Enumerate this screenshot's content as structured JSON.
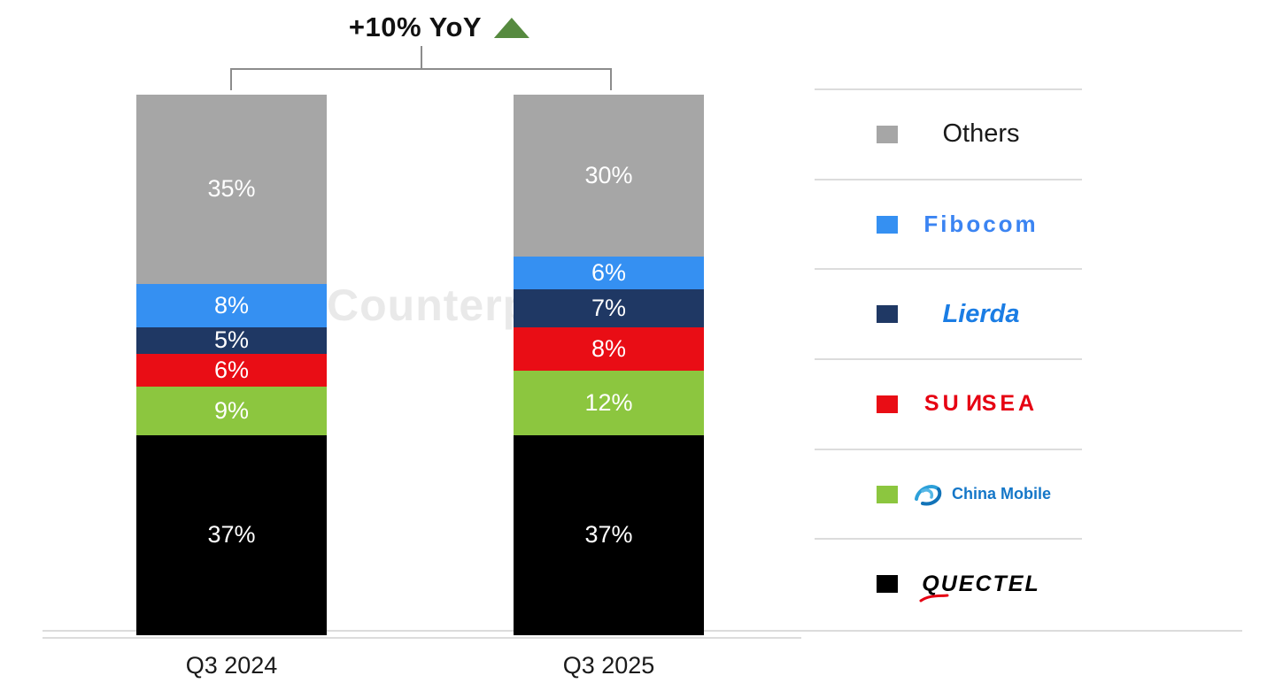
{
  "title": {
    "text": "+10% YoY",
    "arrow_icon": "up-triangle",
    "arrow_color": "#568a3f"
  },
  "watermark": {
    "text": "Counterp"
  },
  "chart_data": {
    "type": "bar",
    "subtype": "100%-stacked-column",
    "title": "+10% YoY",
    "categories": [
      "Q3 2024",
      "Q3 2025"
    ],
    "unit": "%",
    "ylim": [
      0,
      100
    ],
    "grid": false,
    "legend_position": "right",
    "value_labels": "inside, white",
    "series": [
      {
        "name": "Others",
        "color": "#a6a6a6",
        "values": [
          35,
          30
        ]
      },
      {
        "name": "Fibocom",
        "color": "#3590f2",
        "values": [
          8,
          6
        ]
      },
      {
        "name": "Lierda",
        "color": "#1f3864",
        "values": [
          5,
          7
        ]
      },
      {
        "name": "SUNSEA",
        "color": "#e90d15",
        "values": [
          6,
          8
        ]
      },
      {
        "name": "China Mobile",
        "color": "#8cc63f",
        "values": [
          9,
          12
        ]
      },
      {
        "name": "QUECTEL",
        "color": "#000000",
        "values": [
          37,
          37
        ]
      }
    ]
  },
  "legend": {
    "logo_colors": [
      "#1a1a1a",
      "#3b84f2",
      "#1b7de4",
      "#e60012",
      "#1577c8",
      "#000000"
    ]
  }
}
